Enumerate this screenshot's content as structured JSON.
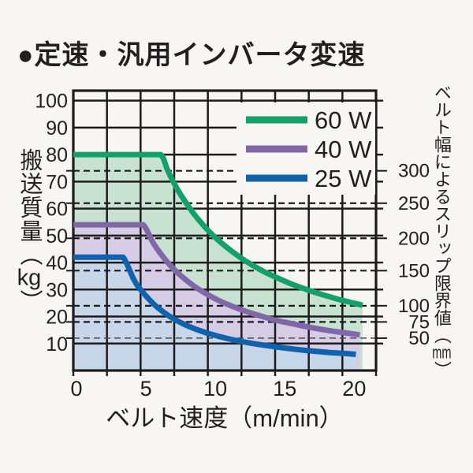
{
  "title": "●定速・汎用インバータ変速",
  "labels": {
    "y_main": "搬送質量",
    "y_open": "︵",
    "y_unit": "kg",
    "y_close": "︶",
    "y2_main": "ベルト幅によるスリップ限界値",
    "y2_open": "︵",
    "y2_unit": "mm",
    "y2_close": "︶",
    "x_label": "ベルト速度（m/min）"
  },
  "colors": {
    "background": "#f7f6f2",
    "text": "#231f20",
    "grid": "#1c1c1c",
    "dashed_minor": "#4a4a4a"
  },
  "chart_data": {
    "type": "area",
    "title": "定速・汎用インバータ変速",
    "xlabel": "ベルト速度（m/min）",
    "ylabel": "搬送質量（kg）",
    "y2label": "ベルト幅によるスリップ限界値（mm）",
    "xlim": [
      0,
      22.5
    ],
    "ylim": [
      0,
      103.7
    ],
    "x_tick_labels": [
      0,
      5,
      10,
      15,
      20
    ],
    "x_grid_step": 2.5,
    "y_tick_labels": [
      10,
      20,
      30,
      40,
      50,
      60,
      70,
      80,
      90,
      100
    ],
    "y_grid_step": 10,
    "grid": "on",
    "legend_position": "upper right",
    "series": [
      {
        "name": "60 W",
        "color": "#14a069",
        "fill": "#c8e2d2",
        "points": [
          [
            0,
            80
          ],
          [
            5.5,
            80
          ],
          [
            6.5,
            80
          ],
          [
            7,
            74.3
          ],
          [
            7.5,
            69.3
          ],
          [
            8,
            65
          ],
          [
            9,
            57.8
          ],
          [
            10,
            52
          ],
          [
            11,
            47.3
          ],
          [
            12.5,
            41.6
          ],
          [
            14,
            37.1
          ],
          [
            15,
            34.7
          ],
          [
            16,
            32.5
          ],
          [
            17.5,
            29.7
          ],
          [
            19,
            27.4
          ],
          [
            20,
            26
          ],
          [
            21.5,
            24.2
          ]
        ]
      },
      {
        "name": "40 W",
        "color": "#8166a8",
        "fill": "#d7cce5",
        "points": [
          [
            0,
            54
          ],
          [
            4.4,
            54
          ],
          [
            5.2,
            54
          ],
          [
            6,
            46.8
          ],
          [
            7,
            40.1
          ],
          [
            8,
            35.1
          ],
          [
            9,
            31.2
          ],
          [
            10,
            28.1
          ],
          [
            11,
            25.5
          ],
          [
            12.5,
            22.5
          ],
          [
            14,
            20.1
          ],
          [
            15,
            18.7
          ],
          [
            16,
            17.6
          ],
          [
            17.5,
            16.1
          ],
          [
            19,
            14.8
          ],
          [
            20,
            14.1
          ],
          [
            21.3,
            13.2
          ]
        ]
      },
      {
        "name": "25 W",
        "color": "#1162ad",
        "fill": "#c8d6ea",
        "points": [
          [
            0,
            42
          ],
          [
            3,
            42
          ],
          [
            3.7,
            42
          ],
          [
            4.5,
            33.7
          ],
          [
            5,
            30
          ],
          [
            6,
            24.5
          ],
          [
            7,
            20.6
          ],
          [
            8,
            17.7
          ],
          [
            9,
            15.5
          ],
          [
            10,
            13.8
          ],
          [
            11.5,
            11.8
          ],
          [
            13,
            10.3
          ],
          [
            15,
            8.8
          ],
          [
            17,
            7.6
          ],
          [
            19,
            6.7
          ],
          [
            20,
            6.4
          ],
          [
            21,
            6
          ]
        ]
      }
    ],
    "slip_limit_lines": [
      {
        "label": "300",
        "kg": 74
      },
      {
        "label": "250",
        "kg": 62
      },
      {
        "label": "200",
        "kg": 49
      },
      {
        "label": "150",
        "kg": 37
      },
      {
        "label": "100",
        "kg": 24
      },
      {
        "label": "75",
        "kg": 18
      },
      {
        "label": "50",
        "kg": 12,
        "minor": true
      }
    ]
  }
}
